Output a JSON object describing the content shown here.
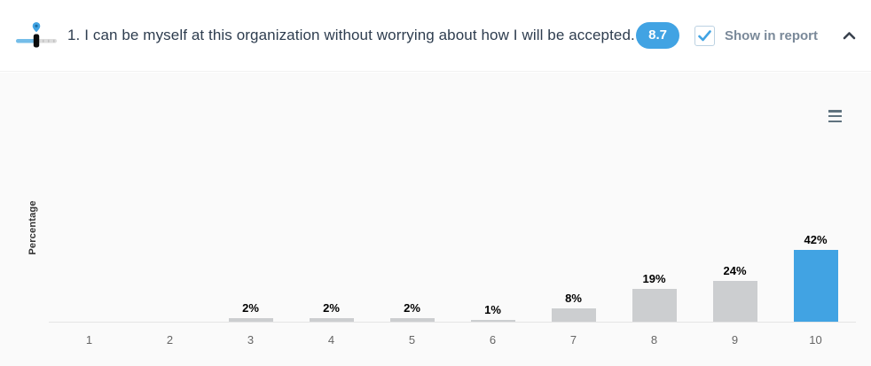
{
  "header": {
    "question": "1. I can be myself at this organization without worrying about how I will be accepted.",
    "score_badge": "8.7",
    "checkbox_checked": true,
    "checkbox_label": "Show in report",
    "icons": {
      "question_type": "scale-slider-icon",
      "collapse": "chevron-up-icon",
      "chart_menu": "hamburger-menu-icon"
    }
  },
  "chart_data": {
    "type": "bar",
    "title": "",
    "categories": [
      "1",
      "2",
      "3",
      "4",
      "5",
      "6",
      "7",
      "8",
      "9",
      "10"
    ],
    "values": [
      0,
      0,
      2,
      2,
      2,
      1,
      8,
      19,
      24,
      42
    ],
    "data_labels": [
      "",
      "",
      "2%",
      "2%",
      "2%",
      "1%",
      "8%",
      "19%",
      "24%",
      "42%"
    ],
    "xlabel": "",
    "ylabel": "Percentage",
    "ylim": [
      0,
      100
    ],
    "grid": false,
    "legend": false,
    "highlight_index": 9,
    "bar_color": "#ccced0",
    "highlight_color": "#41a3e3"
  },
  "colors": {
    "accent_blue": "#41a3e3",
    "header_bg": "#ffffff",
    "chart_bg": "#fafafa",
    "question_text": "#2e3d4f",
    "muted_text": "#7a8999",
    "axis_line": "#e5e5e5"
  }
}
